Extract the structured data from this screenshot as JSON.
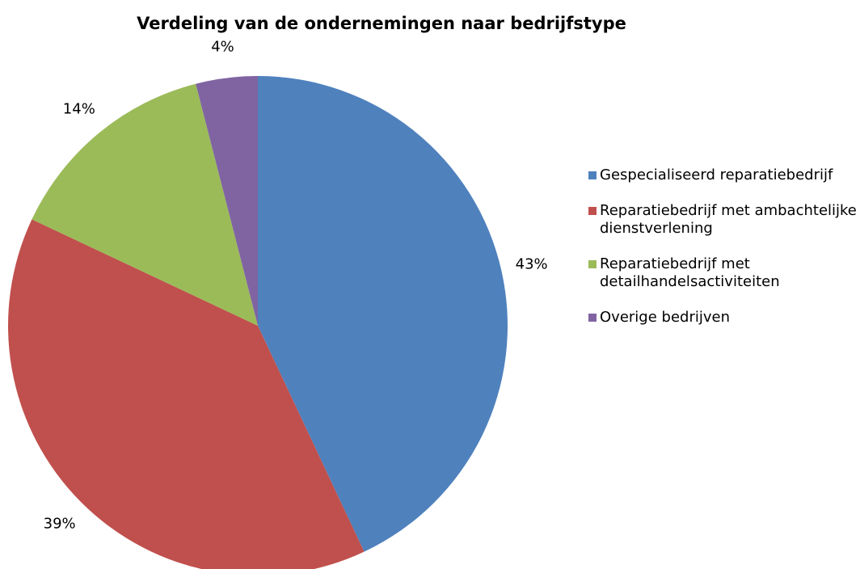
{
  "chart_data": {
    "type": "pie",
    "title": "Verdeling van de ondernemingen naar bedrijfstype",
    "categories": [
      "Gespecialiseerd reparatiebedrijf",
      "Reparatiebedrijf met ambachtelijke dienstverlening",
      "Reparatiebedrijf met detailhandelsactiviteiten",
      "Overige bedrijven"
    ],
    "values": [
      43,
      39,
      14,
      4
    ],
    "value_labels": [
      "43%",
      "39%",
      "14%",
      "4%"
    ],
    "colors": [
      "#4f81bd",
      "#c0504d",
      "#9bbb59",
      "#8064a2"
    ],
    "legend": "right"
  }
}
